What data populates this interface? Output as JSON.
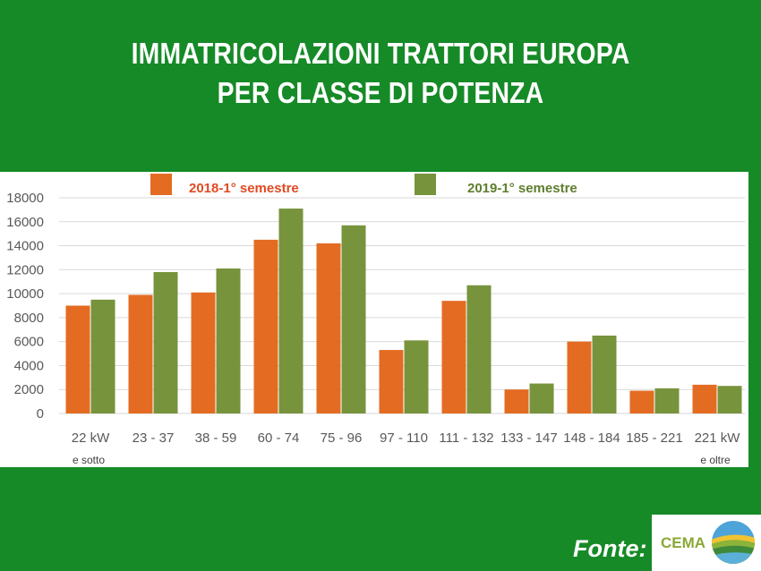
{
  "title_line1": "IMMATRICOLAZIONI TRATTORI EUROPA",
  "title_line2": "PER CLASSE DI POTENZA",
  "source_label": "Fonte:",
  "logo_text": "CEMA",
  "colors": {
    "background": "#168a27",
    "series_2018": "#e36c22",
    "series_2019": "#77933c",
    "legend_2018_text": "#e14a21",
    "legend_2019_text": "#5e7e2e"
  },
  "chart_data": {
    "type": "bar",
    "title": "",
    "xlabel": "",
    "ylabel": "",
    "ylim": [
      0,
      18000
    ],
    "yticks": [
      0,
      2000,
      4000,
      6000,
      8000,
      10000,
      12000,
      14000,
      16000,
      18000
    ],
    "grid": true,
    "legend_placement": "top",
    "categories": [
      "22 kW",
      "23 - 37",
      "38 - 59",
      "60 - 74",
      "75 - 96",
      "97 - 110",
      "111 - 132",
      "133 - 147",
      "148 - 184",
      "185 - 221",
      "221 kW"
    ],
    "category_sublabels": [
      "e sotto",
      "",
      "",
      "",
      "",
      "",
      "",
      "",
      "",
      "",
      "e oltre"
    ],
    "series": [
      {
        "name": "2018-1° semestre",
        "values": [
          9000,
          9900,
          10100,
          14500,
          14200,
          5300,
          9400,
          2000,
          6000,
          1900,
          2400
        ]
      },
      {
        "name": "2019-1° semestre",
        "values": [
          9500,
          11800,
          12100,
          17100,
          15700,
          6100,
          10700,
          2500,
          6500,
          2100,
          2300
        ]
      }
    ]
  }
}
